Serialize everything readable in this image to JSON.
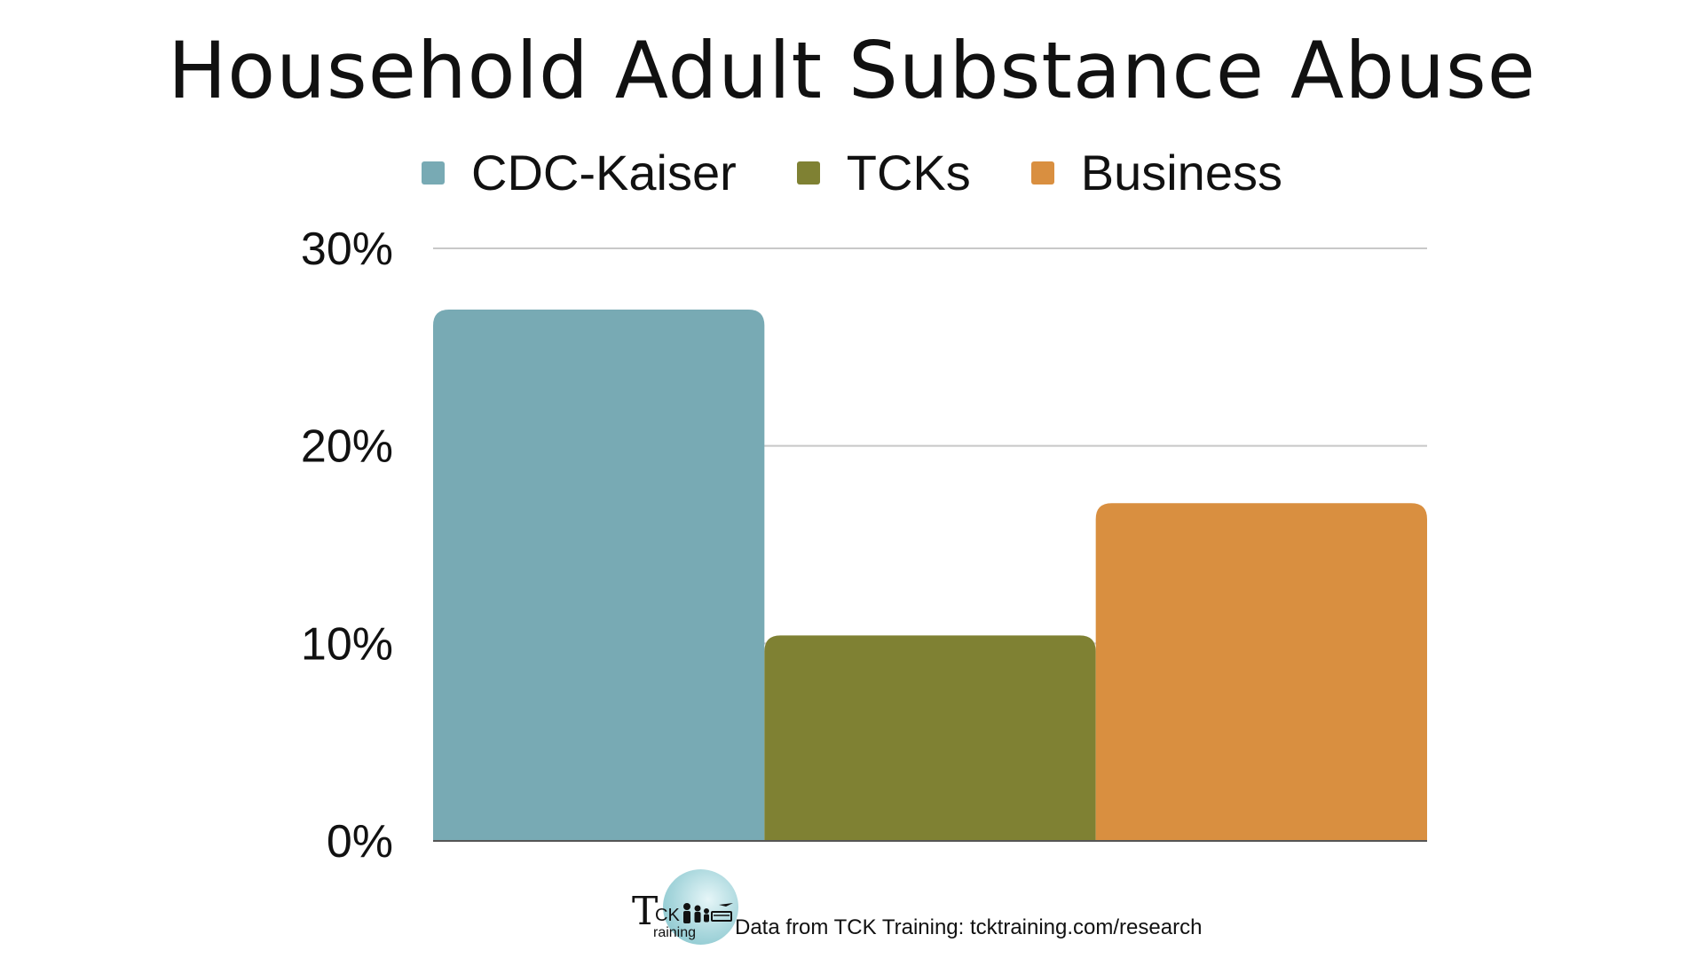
{
  "chart_data": {
    "type": "bar",
    "title": "Household Adult Substance Abuse",
    "categories": [
      ""
    ],
    "series": [
      {
        "name": "CDC-Kaiser",
        "values": [
          26.9
        ],
        "color": "#78aab4"
      },
      {
        "name": "TCKs",
        "values": [
          10.4
        ],
        "color": "#7f8133"
      },
      {
        "name": "Business",
        "values": [
          17.1
        ],
        "color": "#d98f40"
      }
    ],
    "xlabel": "",
    "ylabel": "",
    "ylim": [
      0,
      30
    ],
    "yticks": [
      "0%",
      "10%",
      "20%",
      "30%"
    ],
    "grid": true,
    "legend_position": "top-center"
  },
  "footer": {
    "logo_text_t": "T",
    "logo_text_ck": "CK",
    "logo_text_raining": "raining",
    "source": "Data from TCK Training: tcktraining.com/research"
  }
}
